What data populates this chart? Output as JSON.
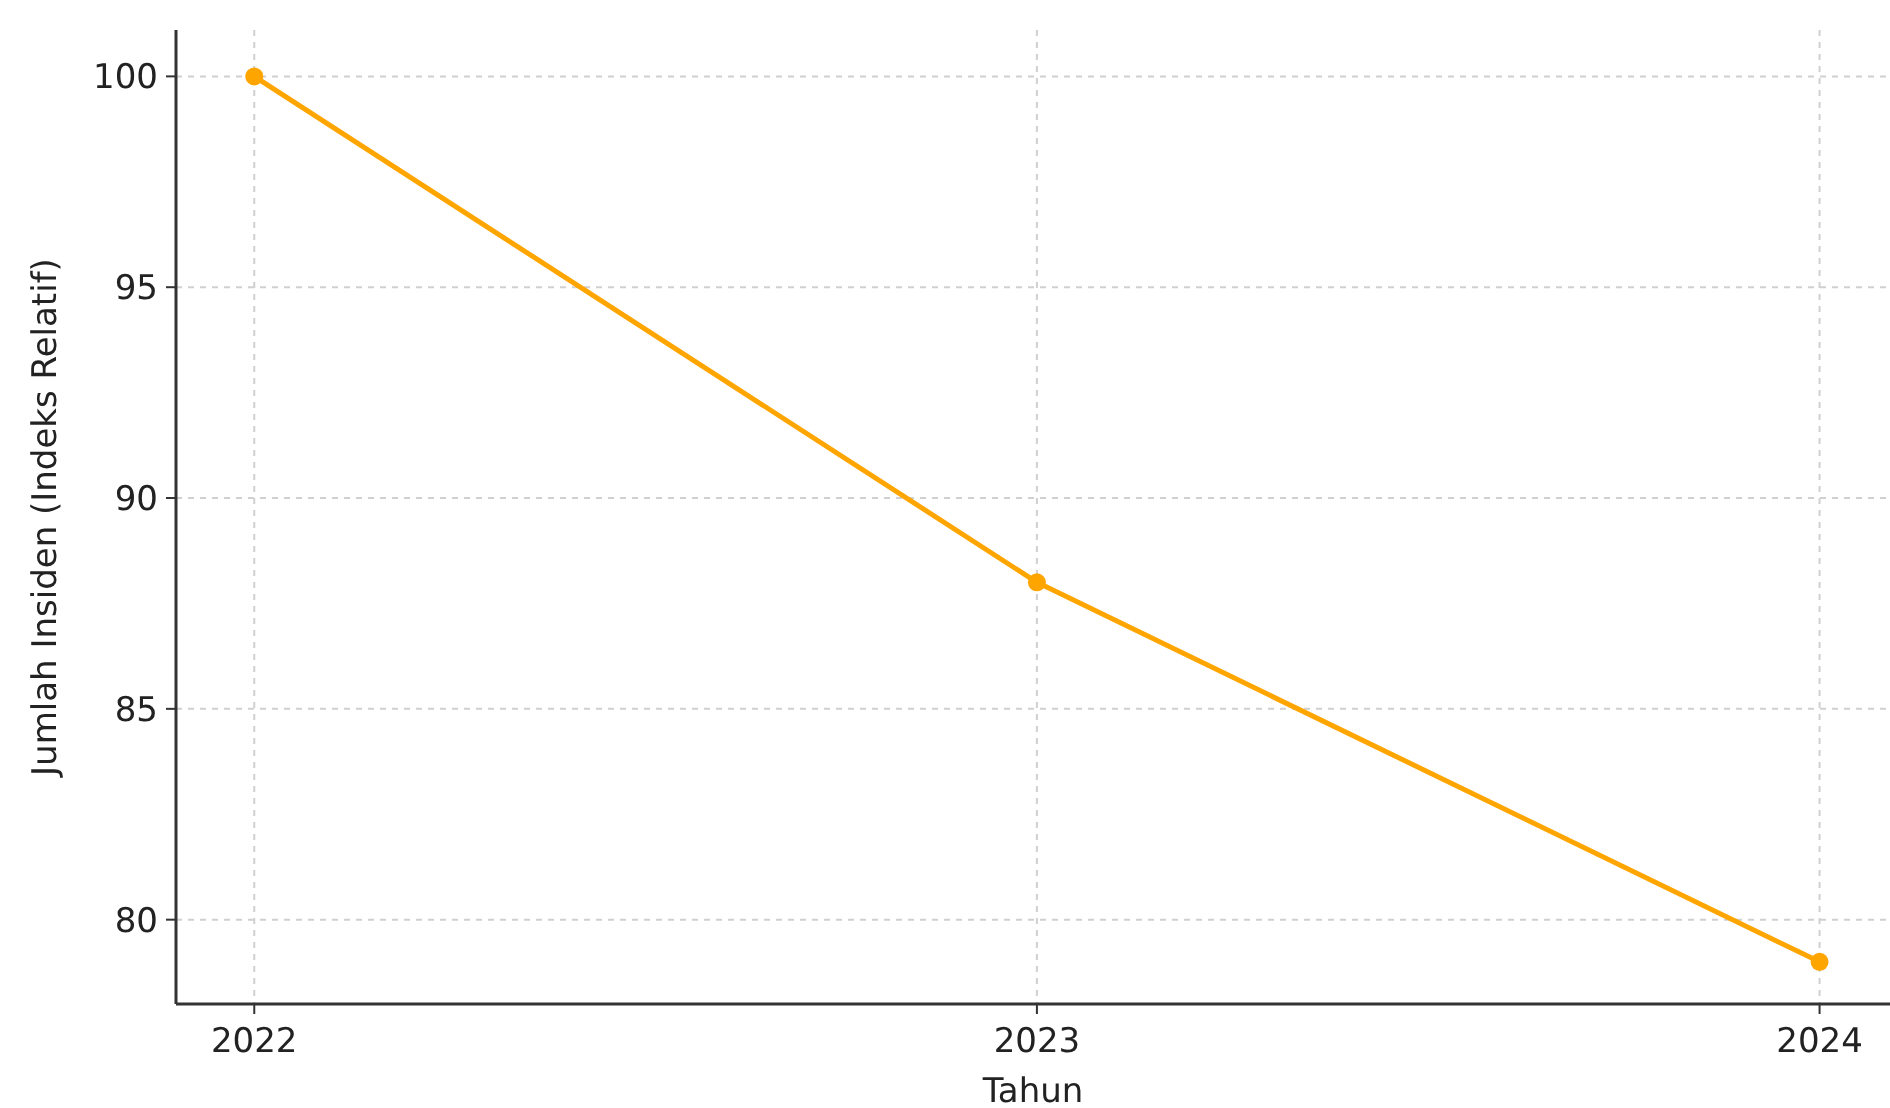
{
  "chart_data": {
    "type": "line",
    "xlabel": "Tahun",
    "ylabel": "Jumlah Insiden (Indeks Relatif)",
    "x": [
      2022,
      2023,
      2024
    ],
    "series": [
      {
        "color": "#ffa500",
        "values": [
          100,
          88,
          79
        ]
      }
    ],
    "xlim": [
      2021.9,
      2024.09
    ],
    "xticks": [
      2022,
      2023,
      2024
    ],
    "ylim": [
      78,
      101.1
    ],
    "yticks": [
      80,
      85,
      90,
      95,
      100
    ],
    "grid": true,
    "marker": "circle",
    "line_style": "solid"
  }
}
